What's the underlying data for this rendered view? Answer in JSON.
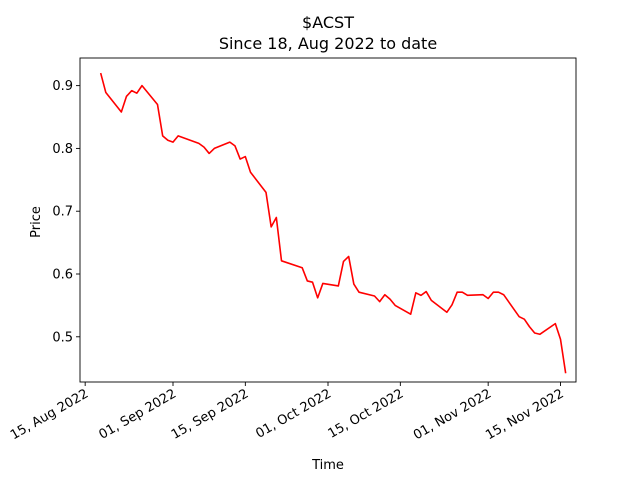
{
  "chart_data": {
    "type": "line",
    "title": "$ACST",
    "subtitle": "Since 18, Aug 2022 to date",
    "xlabel": "Time",
    "ylabel": "Price",
    "xlim": [
      "2022-08-14",
      "2022-11-18"
    ],
    "ylim": [
      0.428,
      0.944
    ],
    "x_ticks": [
      "2022-08-15",
      "2022-09-01",
      "2022-09-15",
      "2022-10-01",
      "2022-10-15",
      "2022-11-01",
      "2022-11-15"
    ],
    "x_tick_labels": [
      "15, Aug 2022",
      "01, Sep 2022",
      "15, Sep 2022",
      "01, Oct 2022",
      "15, Oct 2022",
      "01, Nov 2022",
      "15, Nov 2022"
    ],
    "y_ticks": [
      0.5,
      0.6,
      0.7,
      0.8,
      0.9
    ],
    "y_tick_labels": [
      "0.5",
      "0.6",
      "0.7",
      "0.8",
      "0.9"
    ],
    "grid": false,
    "series": [
      {
        "color": "#ff0000",
        "points": [
          [
            "2022-08-18",
            0.92
          ],
          [
            "2022-08-19",
            0.889
          ],
          [
            "2022-08-22",
            0.858
          ],
          [
            "2022-08-23",
            0.883
          ],
          [
            "2022-08-24",
            0.892
          ],
          [
            "2022-08-25",
            0.888
          ],
          [
            "2022-08-26",
            0.9
          ],
          [
            "2022-08-29",
            0.87
          ],
          [
            "2022-08-30",
            0.82
          ],
          [
            "2022-08-31",
            0.813
          ],
          [
            "2022-09-01",
            0.81
          ],
          [
            "2022-09-02",
            0.82
          ],
          [
            "2022-09-06",
            0.808
          ],
          [
            "2022-09-07",
            0.802
          ],
          [
            "2022-09-08",
            0.792
          ],
          [
            "2022-09-09",
            0.8
          ],
          [
            "2022-09-12",
            0.81
          ],
          [
            "2022-09-13",
            0.804
          ],
          [
            "2022-09-14",
            0.783
          ],
          [
            "2022-09-15",
            0.787
          ],
          [
            "2022-09-16",
            0.762
          ],
          [
            "2022-09-19",
            0.73
          ],
          [
            "2022-09-20",
            0.675
          ],
          [
            "2022-09-21",
            0.69
          ],
          [
            "2022-09-22",
            0.621
          ],
          [
            "2022-09-26",
            0.61
          ],
          [
            "2022-09-27",
            0.589
          ],
          [
            "2022-09-28",
            0.587
          ],
          [
            "2022-09-29",
            0.562
          ],
          [
            "2022-09-30",
            0.585
          ],
          [
            "2022-10-03",
            0.581
          ],
          [
            "2022-10-04",
            0.62
          ],
          [
            "2022-10-05",
            0.628
          ],
          [
            "2022-10-06",
            0.584
          ],
          [
            "2022-10-07",
            0.571
          ],
          [
            "2022-10-10",
            0.565
          ],
          [
            "2022-10-11",
            0.556
          ],
          [
            "2022-10-12",
            0.567
          ],
          [
            "2022-10-13",
            0.56
          ],
          [
            "2022-10-14",
            0.55
          ],
          [
            "2022-10-17",
            0.536
          ],
          [
            "2022-10-18",
            0.57
          ],
          [
            "2022-10-19",
            0.566
          ],
          [
            "2022-10-20",
            0.572
          ],
          [
            "2022-10-21",
            0.558
          ],
          [
            "2022-10-24",
            0.539
          ],
          [
            "2022-10-25",
            0.551
          ],
          [
            "2022-10-26",
            0.571
          ],
          [
            "2022-10-27",
            0.571
          ],
          [
            "2022-10-28",
            0.566
          ],
          [
            "2022-10-31",
            0.567
          ],
          [
            "2022-11-01",
            0.561
          ],
          [
            "2022-11-02",
            0.571
          ],
          [
            "2022-11-03",
            0.571
          ],
          [
            "2022-11-04",
            0.567
          ],
          [
            "2022-11-07",
            0.532
          ],
          [
            "2022-11-08",
            0.528
          ],
          [
            "2022-11-09",
            0.516
          ],
          [
            "2022-11-10",
            0.506
          ],
          [
            "2022-11-11",
            0.504
          ],
          [
            "2022-11-14",
            0.521
          ],
          [
            "2022-11-15",
            0.496
          ],
          [
            "2022-11-16",
            0.442
          ]
        ]
      }
    ]
  }
}
